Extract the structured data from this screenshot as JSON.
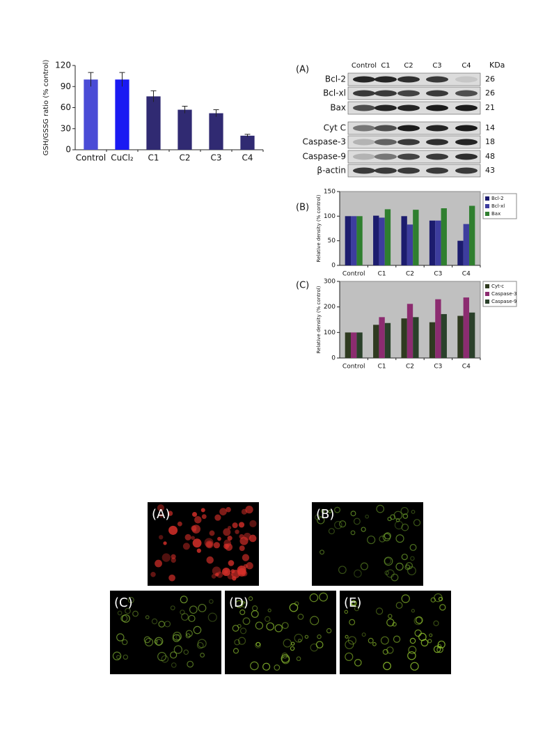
{
  "chart_data": [
    {
      "type": "bar",
      "y_label": "GSH/GSSG ratio (% control)",
      "categories": [
        "Control",
        "CuCl₂",
        "C1",
        "C2",
        "C3",
        "C4"
      ],
      "values": [
        100,
        100,
        76,
        57,
        52,
        20
      ],
      "errors": [
        10,
        10,
        8,
        5,
        5,
        2
      ],
      "colors": [
        "#4a4cd6",
        "#1a1af2",
        "#302a72",
        "#302a72",
        "#302a72",
        "#302a72"
      ],
      "ylim": [
        0,
        120
      ],
      "yticks": [
        0,
        30,
        60,
        90,
        120
      ]
    },
    {
      "type": "bar",
      "label": "(B)",
      "y_label": "Relative density (% control)",
      "categories": [
        "Control",
        "C1",
        "C2",
        "C3",
        "C4"
      ],
      "series": [
        {
          "name": "Bcl-2",
          "color": "#1c1c6e",
          "values": [
            100,
            101,
            100,
            91,
            50
          ]
        },
        {
          "name": "Bcl-xl",
          "color": "#3d3d9e",
          "values": [
            100,
            97,
            83,
            91,
            84
          ]
        },
        {
          "name": "Bax",
          "color": "#2f7f2f",
          "values": [
            100,
            114,
            113,
            116,
            121
          ]
        }
      ],
      "ylim": [
        0,
        150
      ],
      "yticks": [
        0,
        50,
        100,
        150
      ]
    },
    {
      "type": "bar",
      "label": "(C)",
      "y_label": "Relative density (% control)",
      "categories": [
        "Control",
        "C1",
        "C2",
        "C3",
        "C4"
      ],
      "series": [
        {
          "name": "Cyt-c",
          "color": "#2f3a20",
          "values": [
            100,
            130,
            155,
            140,
            165
          ]
        },
        {
          "name": "Caspase-3",
          "color": "#8c2c70",
          "values": [
            100,
            160,
            212,
            230,
            237
          ]
        },
        {
          "name": "Caspase-9",
          "color": "#2a402a",
          "values": [
            100,
            137,
            160,
            172,
            178
          ]
        }
      ],
      "ylim": [
        0,
        300
      ],
      "yticks": [
        0,
        100,
        200,
        300
      ]
    }
  ],
  "blot": {
    "label": "(A)",
    "lanes": [
      "Control",
      "C1",
      "C2",
      "C3",
      "C4"
    ],
    "unit": "KDa",
    "rows": [
      {
        "name": "Bcl-2",
        "kda": "26"
      },
      {
        "name": "Bcl-xl",
        "kda": "26"
      },
      {
        "name": "Bax",
        "kda": "21"
      },
      {
        "name": "Cyt C",
        "kda": "14"
      },
      {
        "name": "Caspase-3",
        "kda": "18"
      },
      {
        "name": "Caspase-9",
        "kda": "48"
      },
      {
        "name": "β-actin",
        "kda": "43"
      }
    ]
  },
  "micrographs": {
    "labels": [
      "(A)",
      "(B)",
      "(C)",
      "(D)",
      "(E)"
    ]
  }
}
